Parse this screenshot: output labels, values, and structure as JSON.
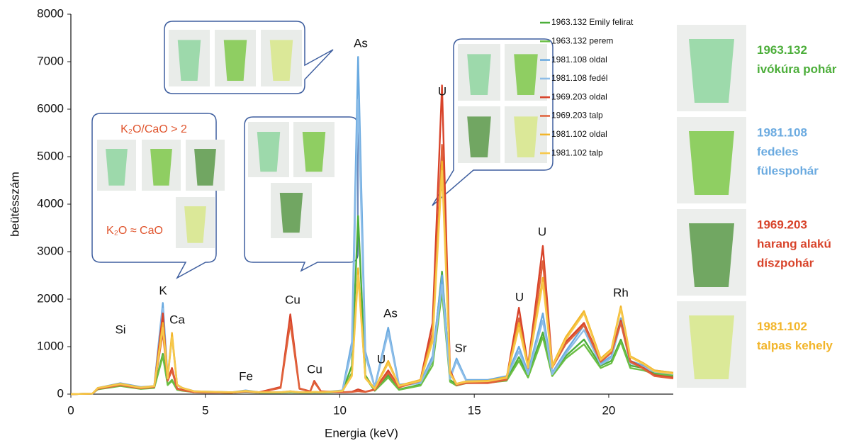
{
  "chart_data": {
    "type": "line",
    "xlabel": "Energia (keV)",
    "ylabel": "beütésszám",
    "xlim": [
      0,
      22.4
    ],
    "ylim": [
      0,
      8000
    ],
    "xticks": [
      0,
      5,
      10,
      15,
      20
    ],
    "yticks": [
      0,
      1000,
      2000,
      3000,
      4000,
      5000,
      6000,
      7000,
      8000
    ],
    "x": [
      0,
      0.8,
      1.0,
      1.84,
      2.6,
      3.1,
      3.42,
      3.6,
      3.76,
      3.95,
      4.15,
      4.6,
      6.0,
      6.5,
      7.0,
      7.8,
      8.16,
      8.5,
      8.9,
      9.05,
      9.3,
      10.1,
      10.45,
      10.68,
      10.95,
      11.3,
      11.8,
      12.2,
      13.0,
      13.45,
      13.8,
      14.1,
      14.34,
      14.7,
      15.5,
      16.2,
      16.66,
      17.0,
      17.55,
      17.9,
      18.4,
      19.08,
      19.7,
      20.1,
      20.45,
      20.8,
      21.3,
      21.7,
      22.4
    ],
    "series": [
      {
        "name": "1963.132 Emily felirat",
        "color": "#4cae3a",
        "values": [
          0,
          10,
          110,
          190,
          120,
          140,
          850,
          200,
          300,
          100,
          80,
          40,
          30,
          60,
          30,
          30,
          50,
          30,
          30,
          40,
          30,
          60,
          600,
          3750,
          400,
          80,
          400,
          100,
          200,
          700,
          2580,
          300,
          200,
          250,
          260,
          300,
          780,
          400,
          1300,
          400,
          800,
          1150,
          600,
          700,
          1150,
          600,
          550,
          450,
          400
        ]
      },
      {
        "name": "1963.132 perem",
        "color": "#6bbf44",
        "values": [
          0,
          10,
          100,
          170,
          110,
          130,
          800,
          190,
          280,
          90,
          70,
          40,
          30,
          50,
          30,
          30,
          40,
          30,
          30,
          35,
          30,
          50,
          450,
          2600,
          350,
          70,
          350,
          90,
          180,
          600,
          2150,
          260,
          180,
          230,
          240,
          280,
          700,
          350,
          1200,
          380,
          750,
          1050,
          550,
          650,
          1100,
          550,
          500,
          420,
          380
        ]
      },
      {
        "name": "1981.108 oldal",
        "color": "#6aaae0",
        "values": [
          0,
          10,
          130,
          230,
          150,
          170,
          1920,
          350,
          1250,
          200,
          130,
          60,
          40,
          80,
          40,
          40,
          60,
          40,
          40,
          50,
          40,
          80,
          1100,
          7100,
          900,
          150,
          1400,
          200,
          250,
          800,
          2500,
          350,
          750,
          300,
          300,
          380,
          1000,
          450,
          1700,
          450,
          900,
          1450,
          650,
          800,
          1600,
          700,
          600,
          500,
          450
        ]
      },
      {
        "name": "1981.108 fedél",
        "color": "#8dbde8",
        "values": [
          0,
          10,
          120,
          210,
          140,
          160,
          1800,
          330,
          1200,
          190,
          120,
          55,
          35,
          70,
          35,
          35,
          55,
          35,
          35,
          45,
          35,
          70,
          950,
          6200,
          800,
          140,
          1300,
          180,
          230,
          720,
          2300,
          320,
          700,
          280,
          280,
          350,
          900,
          420,
          1550,
          420,
          850,
          1350,
          620,
          760,
          1500,
          650,
          560,
          470,
          420
        ]
      },
      {
        "name": "1969.203 oldal",
        "color": "#d8432a",
        "values": [
          0,
          10,
          120,
          200,
          130,
          160,
          1700,
          300,
          550,
          120,
          90,
          40,
          30,
          60,
          40,
          150,
          1680,
          120,
          60,
          280,
          60,
          40,
          50,
          100,
          50,
          100,
          500,
          150,
          300,
          1500,
          6500,
          500,
          200,
          250,
          250,
          320,
          1820,
          600,
          3120,
          600,
          1100,
          1500,
          700,
          900,
          1550,
          700,
          550,
          400,
          350
        ]
      },
      {
        "name": "1969.203 talp",
        "color": "#e0613a",
        "values": [
          0,
          10,
          110,
          190,
          120,
          150,
          1300,
          280,
          500,
          110,
          80,
          40,
          30,
          55,
          35,
          130,
          1500,
          110,
          55,
          250,
          55,
          40,
          45,
          60,
          45,
          90,
          450,
          140,
          280,
          1300,
          5250,
          450,
          190,
          230,
          230,
          300,
          1600,
          550,
          2800,
          560,
          1050,
          1450,
          680,
          870,
          1500,
          680,
          530,
          380,
          330
        ]
      },
      {
        "name": "1981.102 oldal",
        "color": "#f2b52a",
        "values": [
          0,
          10,
          130,
          220,
          140,
          170,
          1500,
          350,
          1290,
          200,
          130,
          60,
          40,
          70,
          40,
          40,
          60,
          40,
          40,
          50,
          40,
          70,
          400,
          2650,
          350,
          120,
          700,
          180,
          300,
          1200,
          4900,
          450,
          220,
          270,
          280,
          360,
          1500,
          600,
          2450,
          600,
          1200,
          1750,
          750,
          950,
          1850,
          800,
          650,
          500,
          450
        ]
      },
      {
        "name": "1981.102 talp",
        "color": "#f7c84a",
        "values": [
          0,
          10,
          125,
          210,
          135,
          165,
          1400,
          330,
          1200,
          190,
          125,
          55,
          38,
          65,
          38,
          38,
          55,
          38,
          38,
          48,
          38,
          65,
          380,
          2500,
          330,
          110,
          650,
          170,
          280,
          1100,
          4700,
          430,
          210,
          260,
          270,
          340,
          1400,
          560,
          2350,
          570,
          1150,
          1700,
          720,
          920,
          1800,
          780,
          630,
          480,
          430
        ]
      }
    ],
    "annotations": [
      "Si",
      "K",
      "Ca",
      "Fe",
      "Cu",
      "Cu",
      "As",
      "U",
      "As",
      "U",
      "Sr",
      "U",
      "U",
      "Rh"
    ],
    "callout_texts": [
      "K₂O/CaO > 2",
      "K₂O ≈ CaO"
    ]
  },
  "samples": [
    {
      "lines": [
        "1963.132",
        "ivókúra pohár"
      ],
      "color": "#4cae3a"
    },
    {
      "lines": [
        "1981.108",
        "fedeles",
        "fülespohár"
      ],
      "color": "#6aaae0"
    },
    {
      "lines": [
        "1969.203",
        "harang alakú",
        "díszpohár"
      ],
      "color": "#d8432a"
    },
    {
      "lines": [
        "1981.102",
        "talpas kehely"
      ],
      "color": "#f2b52a"
    }
  ]
}
